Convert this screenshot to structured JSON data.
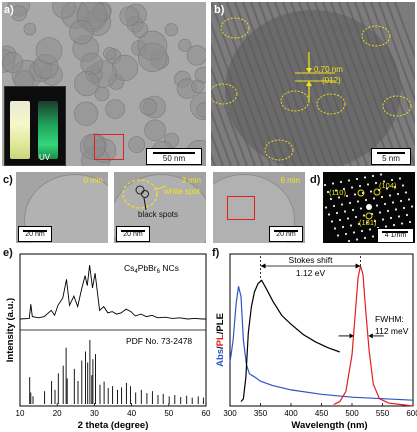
{
  "figure": {
    "panel_labels": [
      "a)",
      "b)",
      "c)",
      "d)",
      "e)",
      "f)"
    ],
    "panel_a": {
      "scale_bar": "50 nm",
      "uv_label": "UV"
    },
    "panel_b": {
      "d_spacing": "0.70 nm",
      "plane": "(012)",
      "scale_bar": "5 nm"
    },
    "panel_c": {
      "frames": [
        {
          "time": "0 min",
          "scale_bar": "20 nm"
        },
        {
          "time": "3 min",
          "scale_bar": "20 nm"
        },
        {
          "time": "6 min",
          "scale_bar": "20 nm"
        }
      ],
      "white_spot": "white spot",
      "black_spots": "black spots"
    },
    "panel_d": {
      "spots": [
        "(110)",
        "(104)",
        "(131)"
      ],
      "scale_bar": "4 1/nm"
    },
    "colors": {
      "yellow": "#f5e21a",
      "red": "#e01f1f",
      "blue": "#2a55c8",
      "black": "#000000"
    }
  },
  "chart_data": [
    {
      "type": "line",
      "panel": "e",
      "ylabel": "Intensity (a.u.)",
      "xlabel": "2 theta (degree)",
      "xlim": [
        10,
        60
      ],
      "x_ticks": [
        "10",
        "20",
        "30",
        "40",
        "50",
        "60"
      ],
      "series": [
        {
          "name": "Cs4PbBr6 NCs",
          "x": [
            10,
            12.5,
            12.9,
            13.3,
            15,
            16.5,
            18.4,
            19.3,
            20.2,
            21.5,
            22.5,
            23.3,
            24.5,
            25.5,
            26.5,
            27.5,
            28.1,
            28.7,
            29.5,
            30.2,
            31.4,
            32.5,
            33.6,
            34.8,
            36,
            37.2,
            38.5,
            39.8,
            41,
            42.5,
            44,
            45.5,
            47,
            49,
            51,
            53,
            55,
            57,
            59,
            60
          ],
          "y": [
            0.08,
            0.09,
            0.32,
            0.12,
            0.1,
            0.12,
            0.22,
            0.14,
            0.3,
            0.42,
            0.72,
            0.3,
            0.45,
            0.28,
            0.55,
            0.78,
            0.62,
            0.95,
            0.58,
            0.82,
            0.22,
            0.28,
            0.18,
            0.2,
            0.16,
            0.18,
            0.24,
            0.2,
            0.13,
            0.16,
            0.12,
            0.14,
            0.1,
            0.11,
            0.09,
            0.1,
            0.08,
            0.09,
            0.08,
            0.08
          ]
        },
        {
          "name": "PDF No. 73-2478",
          "x": [
            12.6,
            12.9,
            13.5,
            16.6,
            18.5,
            19.4,
            20.3,
            21.6,
            22.4,
            22.7,
            24.6,
            25.6,
            26.6,
            27.6,
            28.2,
            28.8,
            29.3,
            29.6,
            30.3,
            31.5,
            32.6,
            33.7,
            34.9,
            36.2,
            37.3,
            38.6,
            39.7,
            41.1,
            42.6,
            44.1,
            45.6,
            47.1,
            48.5,
            50.1,
            51.6,
            53.2,
            54.8,
            56.3,
            57.9,
            59.3
          ],
          "y": [
            0.42,
            0.18,
            0.12,
            0.2,
            0.36,
            0.22,
            0.48,
            0.6,
            0.88,
            0.4,
            0.55,
            0.36,
            0.68,
            0.82,
            0.65,
            1.0,
            0.45,
            0.7,
            0.78,
            0.3,
            0.35,
            0.25,
            0.28,
            0.22,
            0.26,
            0.33,
            0.28,
            0.18,
            0.22,
            0.17,
            0.2,
            0.14,
            0.16,
            0.12,
            0.14,
            0.11,
            0.13,
            0.1,
            0.12,
            0.1
          ]
        }
      ]
    },
    {
      "type": "line",
      "panel": "f",
      "ylabel_parts": [
        "Abs",
        "/",
        "PL",
        "/",
        "PLE"
      ],
      "xlabel": "Wavelength (nm)",
      "xlim": [
        300,
        600
      ],
      "x_ticks": [
        "300",
        "350",
        "400",
        "450",
        "500",
        "550",
        "600"
      ],
      "annotations": {
        "stokes": "Stokes shift",
        "stokes_value": "1.12 eV",
        "fwhm": "FWHM:",
        "fwhm_value": "112 meV"
      },
      "series": [
        {
          "name": "Abs",
          "x": [
            300,
            305,
            310,
            314,
            318,
            322,
            327,
            332,
            340,
            350,
            370,
            400,
            450,
            500,
            550,
            600
          ],
          "y": [
            0.3,
            0.45,
            0.7,
            0.82,
            0.75,
            0.45,
            0.28,
            0.22,
            0.2,
            0.17,
            0.14,
            0.11,
            0.08,
            0.06,
            0.05,
            0.04
          ]
        },
        {
          "name": "PLE",
          "x": [
            318,
            322,
            326,
            330,
            335,
            340,
            346,
            352,
            360,
            370,
            385,
            400,
            420,
            440,
            460,
            480
          ],
          "y": [
            0.03,
            0.05,
            0.2,
            0.5,
            0.68,
            0.78,
            0.84,
            0.86,
            0.8,
            0.72,
            0.62,
            0.56,
            0.49,
            0.44,
            0.4,
            0.37
          ]
        },
        {
          "name": "PL",
          "x": [
            470,
            480,
            490,
            500,
            505,
            510,
            514,
            518,
            522,
            528,
            535,
            545,
            560,
            580,
            600
          ],
          "y": [
            0.01,
            0.03,
            0.1,
            0.35,
            0.62,
            0.88,
            0.96,
            0.9,
            0.68,
            0.38,
            0.15,
            0.05,
            0.02,
            0.01,
            0.0
          ]
        }
      ]
    }
  ]
}
